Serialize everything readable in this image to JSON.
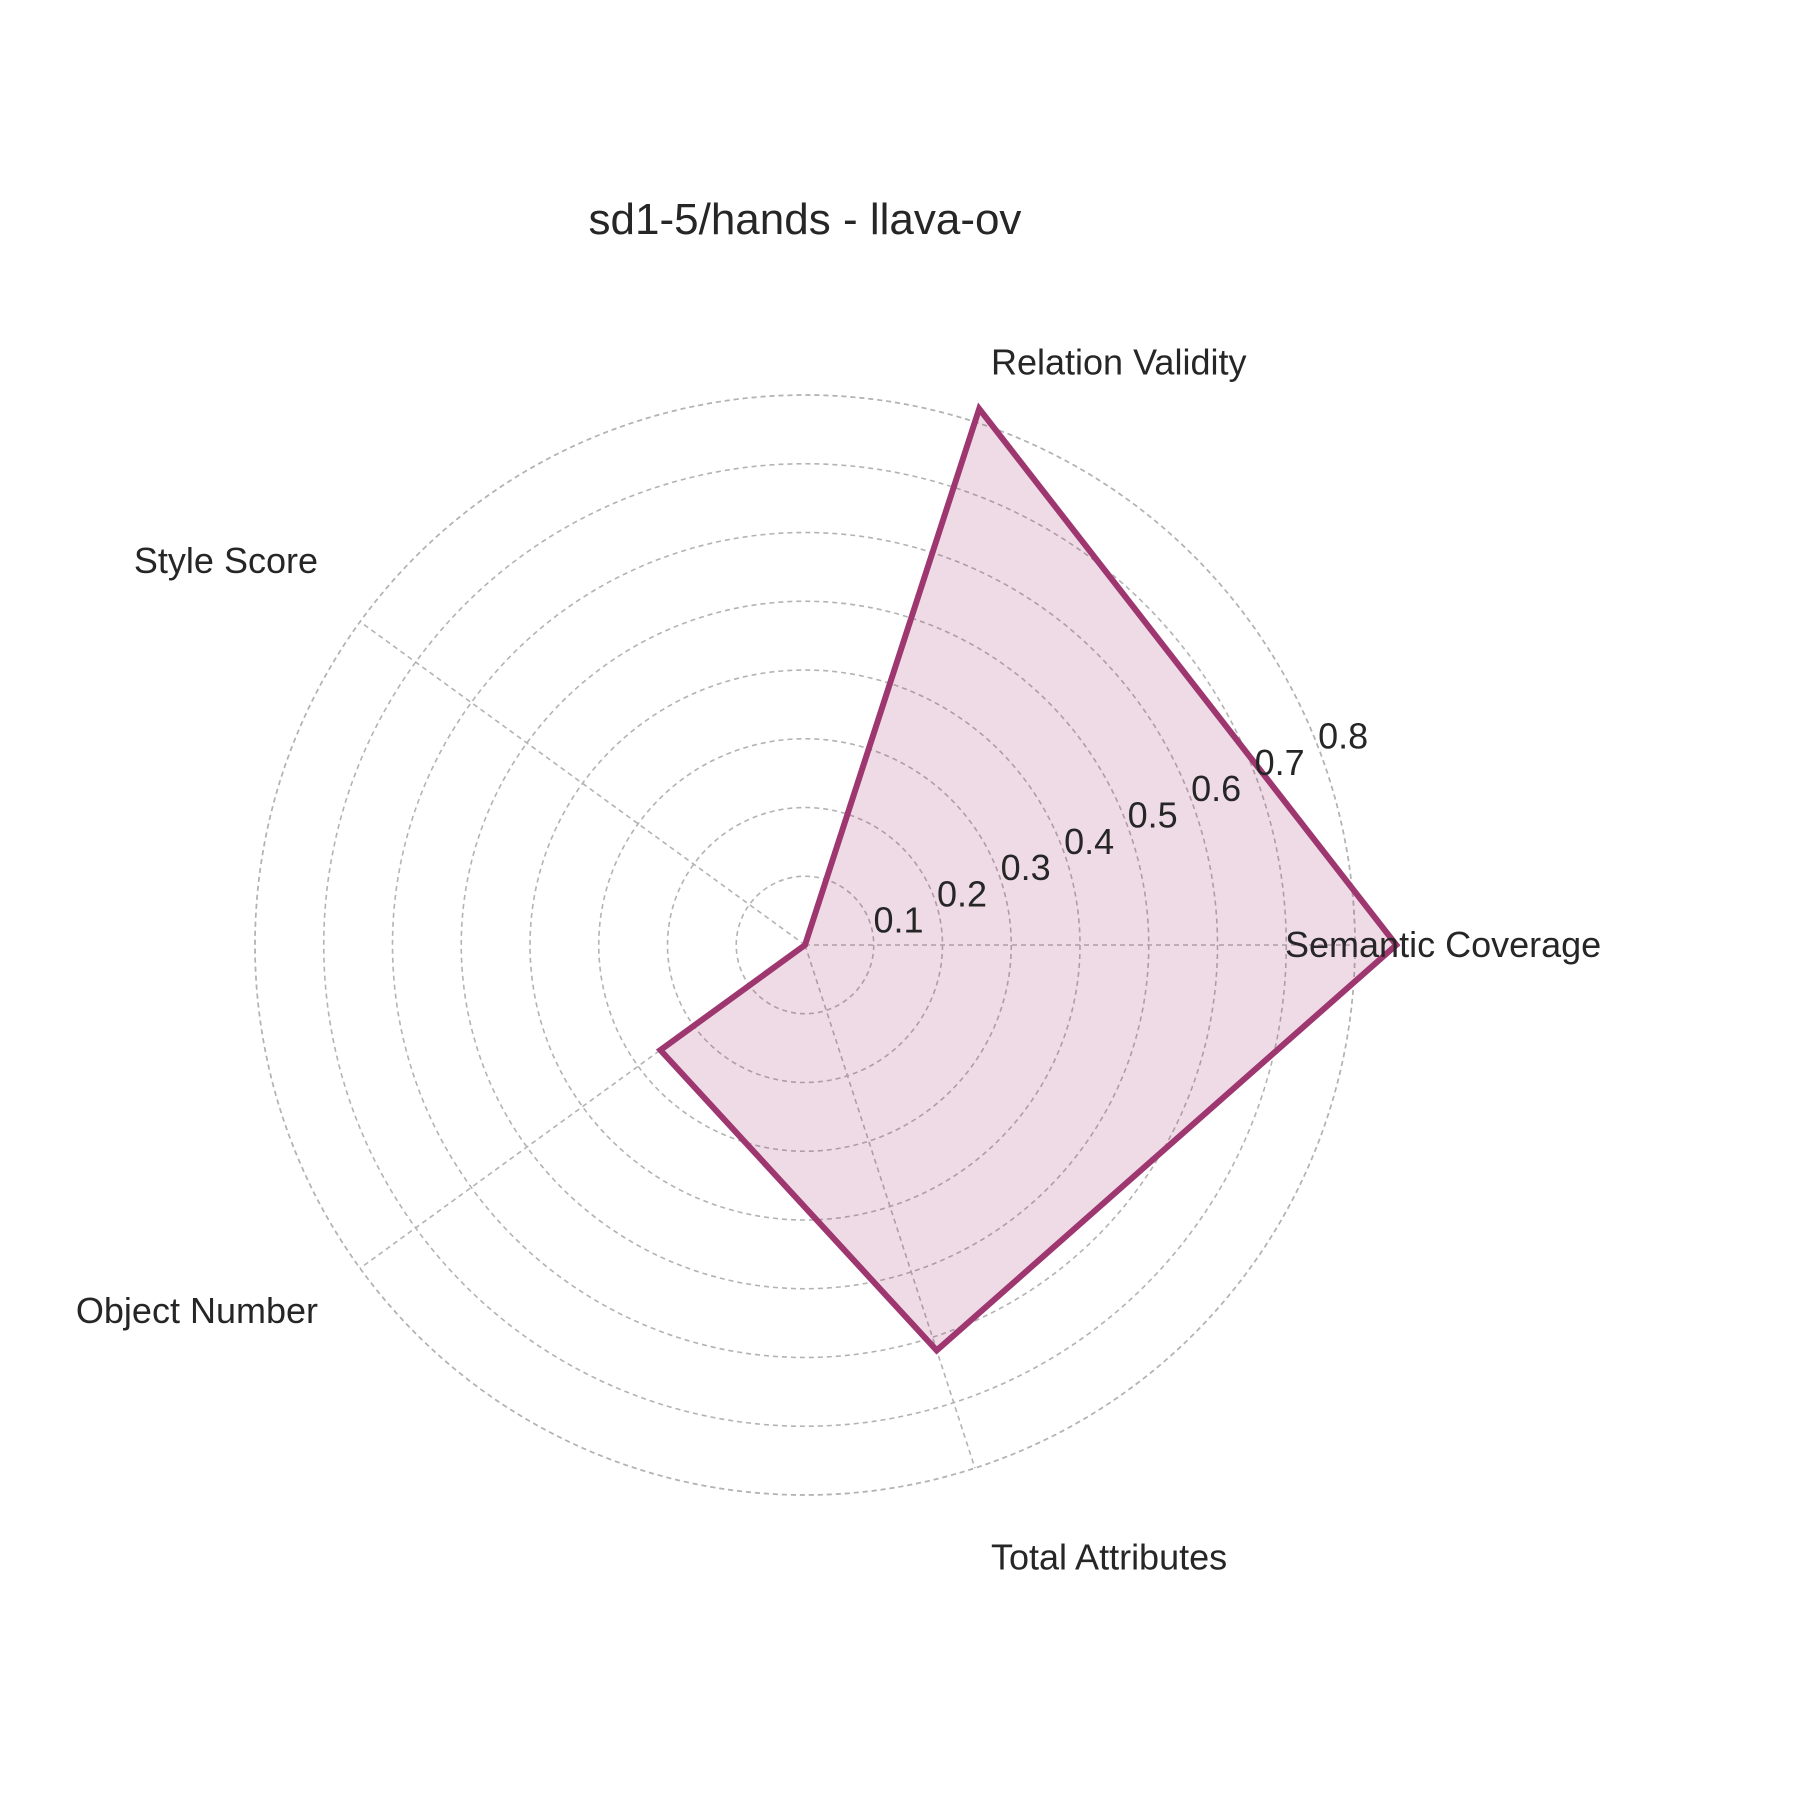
{
  "chart_data": {
    "type": "radar",
    "title": "sd1-5/hands - llava-ov",
    "axes": [
      "Semantic Coverage",
      "Relation Validity",
      "Style Score",
      "Object Number",
      "Total Attributes"
    ],
    "rticks": [
      0.1,
      0.2,
      0.3,
      0.4,
      0.5,
      0.6,
      0.7,
      0.8
    ],
    "rtick_labels": [
      "0.1",
      "0.2",
      "0.3",
      "0.4",
      "0.5",
      "0.6",
      "0.7",
      "0.8"
    ],
    "rlim": [
      0,
      0.8
    ],
    "grid": true,
    "series": [
      {
        "values": [
          0.86,
          0.82,
          0.0,
          0.26,
          0.62
        ]
      }
    ],
    "colors": {
      "line": "#9e3670",
      "fill": "#9e3670",
      "fill_opacity": 0.18
    }
  }
}
